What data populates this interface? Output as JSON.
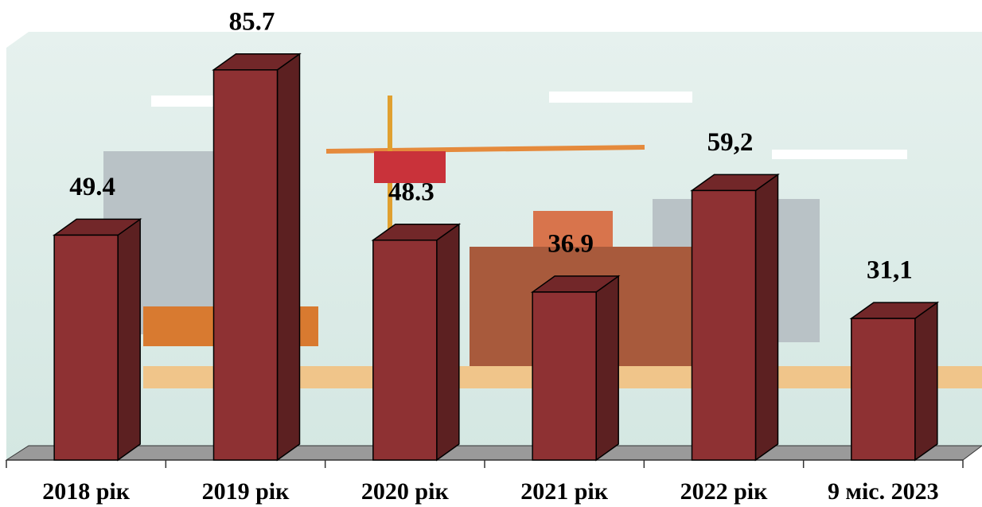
{
  "chart_data": {
    "type": "bar3d",
    "categories": [
      "2018 рік",
      "2019 рік",
      "2020 рік",
      "2021 рік",
      "2022 рік",
      "9 міс. 2023"
    ],
    "values": [
      49.4,
      85.7,
      48.3,
      36.9,
      59.2,
      31.1
    ],
    "value_labels": [
      "49.4",
      "85.7",
      "48.3",
      "36.9",
      "59,2",
      "31,1"
    ],
    "color": "#8e3133"
  }
}
